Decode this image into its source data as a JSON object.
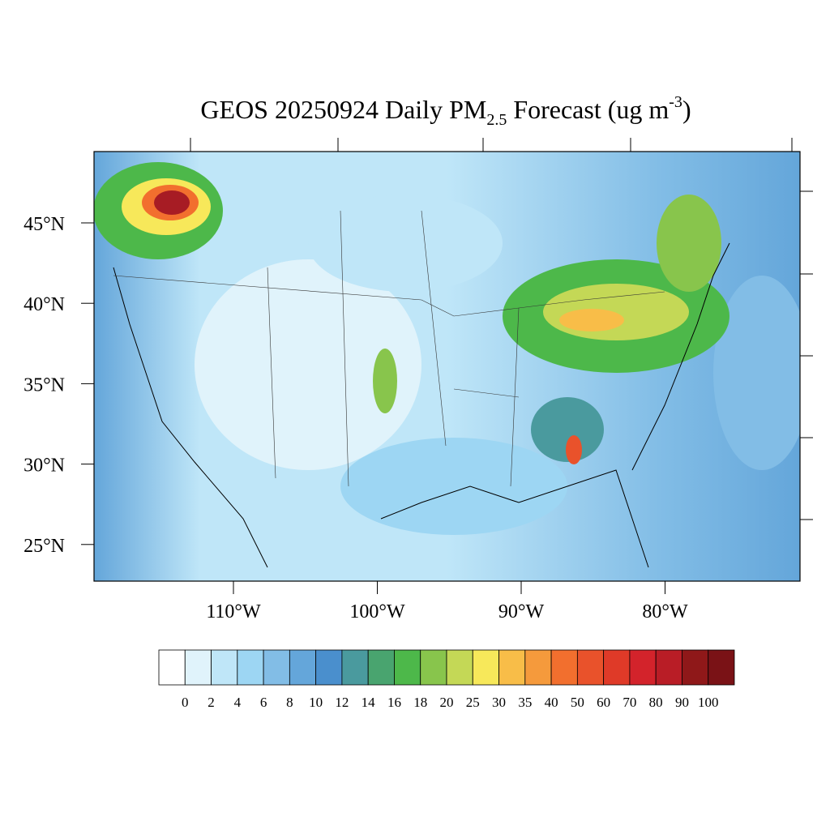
{
  "title": {
    "main": "GEOS 20250924 Daily PM",
    "subscript": "2.5",
    "middle": " Forecast (ug m",
    "superscript": "-3",
    "end": ")"
  },
  "lat_labels": [
    "45°N",
    "40°N",
    "35°N",
    "30°N",
    "25°N"
  ],
  "lon_labels": [
    "110°W",
    "100°W",
    "90°W",
    "80°W"
  ],
  "colorbar": {
    "levels": [
      0,
      2,
      4,
      6,
      8,
      10,
      12,
      14,
      16,
      18,
      20,
      25,
      30,
      35,
      40,
      50,
      60,
      70,
      80,
      90,
      100
    ],
    "colors": [
      "#ffffff",
      "#e0f3fb",
      "#bfe6f8",
      "#9dd6f3",
      "#82bde6",
      "#64a6da",
      "#4a8fcd",
      "#4a9a9e",
      "#49a46f",
      "#4db84a",
      "#88c54c",
      "#c4d856",
      "#f7e85a",
      "#f8bd48",
      "#f59a3c",
      "#f26f2e",
      "#e9522b",
      "#df3a28",
      "#d3232b",
      "#b91d26",
      "#8f1819",
      "#7a1216"
    ]
  }
}
